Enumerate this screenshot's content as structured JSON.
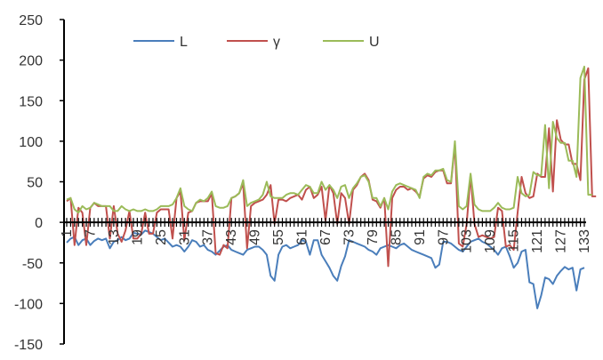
{
  "chart_data": {
    "type": "line",
    "title": "",
    "xlabel": "",
    "ylabel": "",
    "ylim": [
      -150,
      250
    ],
    "yticks": [
      -150,
      -100,
      -50,
      0,
      50,
      100,
      150,
      200,
      250
    ],
    "x_tick_labels": [
      "1",
      "7",
      "13",
      "19",
      "25",
      "31",
      "37",
      "43",
      "49",
      "55",
      "61",
      "67",
      "73",
      "79",
      "85",
      "91",
      "97",
      "103",
      "109",
      "115",
      "121",
      "127",
      "133"
    ],
    "grid": false,
    "legend_position": "top",
    "series": [
      {
        "name": "L",
        "color": "#4a7ebb",
        "values": [
          -25,
          -20,
          -18,
          -28,
          -22,
          -20,
          -28,
          -23,
          -20,
          -22,
          -20,
          -32,
          -24,
          -22,
          -18,
          -22,
          -20,
          -13,
          -14,
          -15,
          -10,
          -12,
          -14,
          -18,
          -22,
          -20,
          -25,
          -30,
          -28,
          -30,
          -36,
          -30,
          -22,
          -24,
          -30,
          -28,
          -34,
          -36,
          -40,
          -35,
          -30,
          -28,
          -34,
          -36,
          -38,
          -40,
          -34,
          -32,
          -30,
          -30,
          -34,
          -40,
          -66,
          -72,
          -40,
          -30,
          -28,
          -32,
          -30,
          -28,
          -22,
          -24,
          -40,
          -22,
          -22,
          -40,
          -48,
          -56,
          -66,
          -72,
          -54,
          -42,
          -22,
          -24,
          -26,
          -28,
          -30,
          -34,
          -36,
          -40,
          -32,
          -30,
          -28,
          -30,
          -32,
          -28,
          -26,
          -30,
          -34,
          -36,
          -38,
          -40,
          -42,
          -44,
          -56,
          -52,
          -24,
          -24,
          -26,
          -30,
          -34,
          -36,
          -30,
          -24,
          -22,
          -20,
          -24,
          -26,
          -30,
          -34,
          -40,
          -32,
          -30,
          -42,
          -56,
          -50,
          -36,
          -34,
          -74,
          -76,
          -106,
          -90,
          -68,
          -70,
          -76,
          -66,
          -60,
          -55,
          -58,
          -56,
          -84,
          -58,
          -56
        ]
      },
      {
        "name": "γ",
        "color": "#c0504d",
        "values": [
          26,
          30,
          -28,
          18,
          12,
          -28,
          18,
          24,
          20,
          20,
          20,
          -20,
          20,
          -14,
          -24,
          -10,
          14,
          -20,
          -20,
          -14,
          12,
          -14,
          -14,
          12,
          16,
          16,
          16,
          -20,
          30,
          38,
          -22,
          12,
          14,
          24,
          26,
          26,
          26,
          36,
          -38,
          -40,
          -28,
          -32,
          30,
          32,
          36,
          48,
          -32,
          20,
          24,
          26,
          28,
          34,
          46,
          -2,
          28,
          28,
          26,
          30,
          32,
          34,
          28,
          40,
          44,
          30,
          34,
          44,
          2,
          46,
          36,
          -2,
          36,
          30,
          -2,
          40,
          46,
          56,
          60,
          52,
          28,
          26,
          18,
          30,
          -54,
          30,
          40,
          44,
          44,
          40,
          42,
          38,
          32,
          54,
          58,
          56,
          62,
          64,
          64,
          48,
          48,
          96,
          -26,
          -30,
          -2,
          58,
          -2,
          -18,
          -16,
          -18,
          -20,
          -18,
          18,
          14,
          -30,
          -28,
          -34,
          12,
          56,
          36,
          30,
          32,
          60,
          56,
          56,
          116,
          38,
          126,
          102,
          96,
          96,
          72,
          72,
          52,
          176,
          190,
          32,
          32
        ]
      },
      {
        "name": "U",
        "color": "#9bbb59",
        "values": [
          28,
          30,
          16,
          12,
          20,
          16,
          18,
          24,
          22,
          20,
          20,
          20,
          14,
          14,
          20,
          16,
          14,
          16,
          14,
          14,
          16,
          14,
          14,
          16,
          20,
          20,
          20,
          22,
          30,
          42,
          20,
          16,
          14,
          24,
          28,
          26,
          30,
          38,
          20,
          18,
          18,
          20,
          30,
          32,
          36,
          52,
          20,
          24,
          26,
          28,
          34,
          50,
          32,
          30,
          30,
          30,
          34,
          36,
          36,
          34,
          40,
          46,
          44,
          36,
          36,
          50,
          40,
          46,
          40,
          30,
          44,
          46,
          30,
          42,
          48,
          56,
          58,
          50,
          30,
          30,
          20,
          30,
          16,
          38,
          46,
          48,
          46,
          44,
          42,
          40,
          30,
          56,
          60,
          58,
          64,
          64,
          66,
          52,
          50,
          100,
          20,
          16,
          20,
          60,
          22,
          16,
          14,
          14,
          14,
          18,
          24,
          18,
          16,
          16,
          18,
          56,
          36,
          32,
          34,
          62,
          58,
          58,
          120,
          42,
          124,
          104,
          98,
          98,
          76,
          76,
          56,
          178,
          192,
          34,
          34
        ]
      }
    ]
  }
}
